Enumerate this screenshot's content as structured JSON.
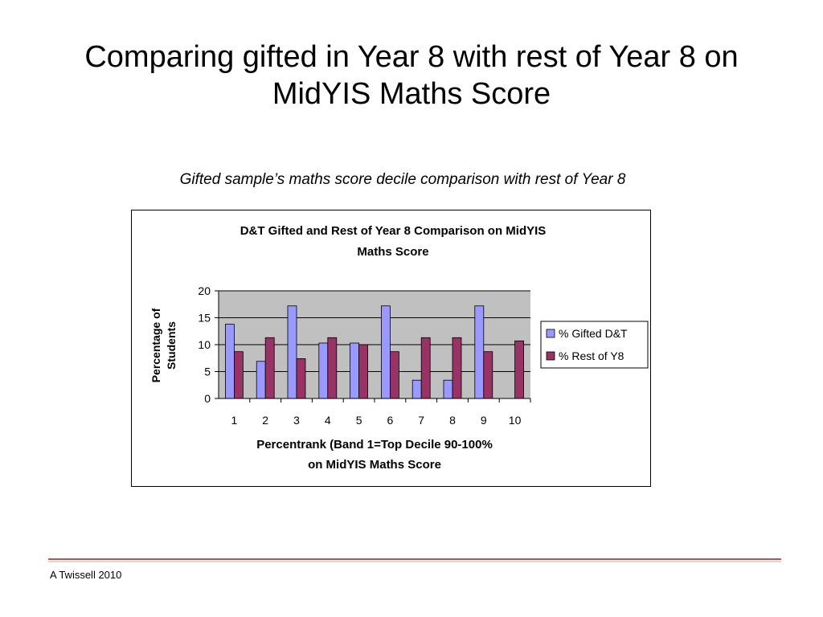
{
  "slide": {
    "title_line1": "Comparing gifted in Year 8 with rest of Year 8 on",
    "title_line2": "MidYIS Maths Score",
    "subtitle": "Gifted sample’s maths score decile comparison with rest of Year 8",
    "footer": "A Twissell 2010"
  },
  "colors": {
    "series1": "#9999ff",
    "series2": "#993366",
    "plot_background": "#c0c0c0",
    "footer_accent": "#c0504d"
  },
  "chart_data": {
    "type": "bar",
    "title_line1": "D&T Gifted and Rest of Year 8 Comparison on MidYIS",
    "title_line2": "Maths Score",
    "xlabel_line1": "Percentrank (Band 1=Top Decile 90-100%",
    "xlabel_line2": "on MidYIS Maths Score",
    "ylabel_line1": "Percentage of",
    "ylabel_line2": "Students",
    "categories": [
      "1",
      "2",
      "3",
      "4",
      "5",
      "6",
      "7",
      "8",
      "9",
      "10"
    ],
    "series": [
      {
        "name": "% Gifted D&T",
        "values": [
          13.8,
          6.9,
          17.2,
          10.3,
          10.3,
          17.2,
          3.4,
          3.4,
          17.2,
          0
        ]
      },
      {
        "name": "% Rest of Y8",
        "values": [
          8.7,
          11.3,
          7.4,
          11.3,
          10.0,
          8.7,
          11.3,
          11.3,
          8.7,
          10.7
        ]
      }
    ],
    "ylim": [
      0,
      20
    ],
    "yticks": [
      "0",
      "5",
      "10",
      "15",
      "20"
    ],
    "grid": true,
    "legend_position": "right"
  }
}
